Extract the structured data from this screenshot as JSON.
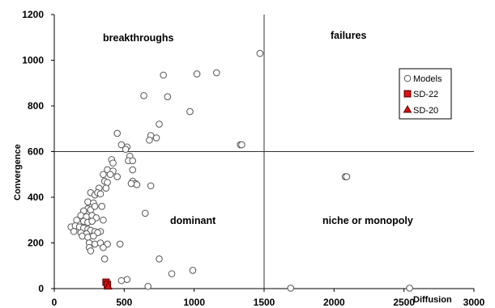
{
  "chart_data": {
    "type": "scatter",
    "title": "",
    "xlabel": "Diffusion",
    "ylabel": "Convergence",
    "xlim": [
      0,
      3000
    ],
    "ylim": [
      0,
      1200
    ],
    "x_ticks": [
      0,
      500,
      1000,
      1500,
      2000,
      2500,
      3000
    ],
    "y_ticks": [
      0,
      200,
      400,
      600,
      800,
      1000,
      1200
    ],
    "grid": false,
    "divider_x": 1500,
    "divider_y": 600,
    "quadrant_labels": {
      "top_left": "breakthroughs",
      "top_right": "failures",
      "bottom_left": "dominant",
      "bottom_right": "niche or monopoly"
    },
    "legend_position": "right",
    "series": [
      {
        "name": "Models",
        "marker": "circle",
        "color": "#ffffff",
        "stroke": "#555555",
        "points": [
          [
            1470,
            1030
          ],
          [
            1160,
            945
          ],
          [
            1020,
            940
          ],
          [
            780,
            935
          ],
          [
            810,
            840
          ],
          [
            640,
            845
          ],
          [
            970,
            775
          ],
          [
            750,
            720
          ],
          [
            450,
            680
          ],
          [
            690,
            670
          ],
          [
            730,
            660
          ],
          [
            680,
            650
          ],
          [
            1330,
            630
          ],
          [
            1340,
            630
          ],
          [
            480,
            630
          ],
          [
            520,
            620
          ],
          [
            510,
            610
          ],
          [
            540,
            580
          ],
          [
            530,
            560
          ],
          [
            560,
            560
          ],
          [
            410,
            565
          ],
          [
            420,
            550
          ],
          [
            380,
            520
          ],
          [
            420,
            515
          ],
          [
            350,
            500
          ],
          [
            400,
            500
          ],
          [
            560,
            520
          ],
          [
            450,
            490
          ],
          [
            360,
            470
          ],
          [
            380,
            465
          ],
          [
            560,
            470
          ],
          [
            580,
            460
          ],
          [
            590,
            455
          ],
          [
            550,
            460
          ],
          [
            690,
            450
          ],
          [
            320,
            440
          ],
          [
            370,
            440
          ],
          [
            260,
            420
          ],
          [
            290,
            410
          ],
          [
            310,
            420
          ],
          [
            330,
            415
          ],
          [
            240,
            380
          ],
          [
            280,
            375
          ],
          [
            650,
            330
          ],
          [
            240,
            350
          ],
          [
            210,
            340
          ],
          [
            260,
            345
          ],
          [
            290,
            360
          ],
          [
            340,
            360
          ],
          [
            190,
            320
          ],
          [
            230,
            315
          ],
          [
            270,
            320
          ],
          [
            300,
            310
          ],
          [
            350,
            300
          ],
          [
            160,
            300
          ],
          [
            210,
            295
          ],
          [
            240,
            290
          ],
          [
            270,
            295
          ],
          [
            120,
            270
          ],
          [
            150,
            275
          ],
          [
            180,
            270
          ],
          [
            210,
            265
          ],
          [
            240,
            260
          ],
          [
            260,
            255
          ],
          [
            290,
            250
          ],
          [
            140,
            250
          ],
          [
            190,
            245
          ],
          [
            230,
            240
          ],
          [
            330,
            250
          ],
          [
            310,
            245
          ],
          [
            200,
            230
          ],
          [
            240,
            225
          ],
          [
            280,
            230
          ],
          [
            250,
            200
          ],
          [
            290,
            195
          ],
          [
            330,
            200
          ],
          [
            380,
            195
          ],
          [
            470,
            195
          ],
          [
            250,
            180
          ],
          [
            260,
            165
          ],
          [
            350,
            180
          ],
          [
            360,
            130
          ],
          [
            750,
            130
          ],
          [
            990,
            80
          ],
          [
            840,
            65
          ],
          [
            520,
            40
          ],
          [
            480,
            35
          ],
          [
            670,
            10
          ],
          [
            1690,
            2
          ],
          [
            2540,
            2
          ],
          [
            2080,
            490
          ],
          [
            2090,
            490
          ]
        ]
      },
      {
        "name": "SD-22",
        "marker": "square",
        "color": "#dd1111",
        "stroke": "#550000",
        "points": [
          [
            370,
            28
          ],
          [
            380,
            18
          ]
        ]
      },
      {
        "name": "SD-20",
        "marker": "triangle",
        "color": "#dd1111",
        "stroke": "#550000",
        "points": [
          [
            385,
            10
          ]
        ]
      }
    ]
  }
}
